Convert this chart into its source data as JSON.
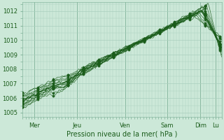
{
  "title": "Pression niveau de la mer( hPa )",
  "ylabel_values": [
    1005,
    1006,
    1007,
    1008,
    1009,
    1010,
    1011,
    1012
  ],
  "ylim": [
    1004.7,
    1012.6
  ],
  "xlim": [
    0,
    132
  ],
  "xtick_positions": [
    8,
    36,
    68,
    96,
    118,
    128
  ],
  "xtick_labels": [
    "Mer",
    "Jeu",
    "Ven",
    "Sam",
    "Dim",
    "Lu"
  ],
  "day_lines": [
    8,
    36,
    68,
    96,
    118,
    128
  ],
  "bg_color": "#cce8d8",
  "grid_color": "#aacfbe",
  "line_color": "#1a5c1a",
  "n_steps": 132
}
